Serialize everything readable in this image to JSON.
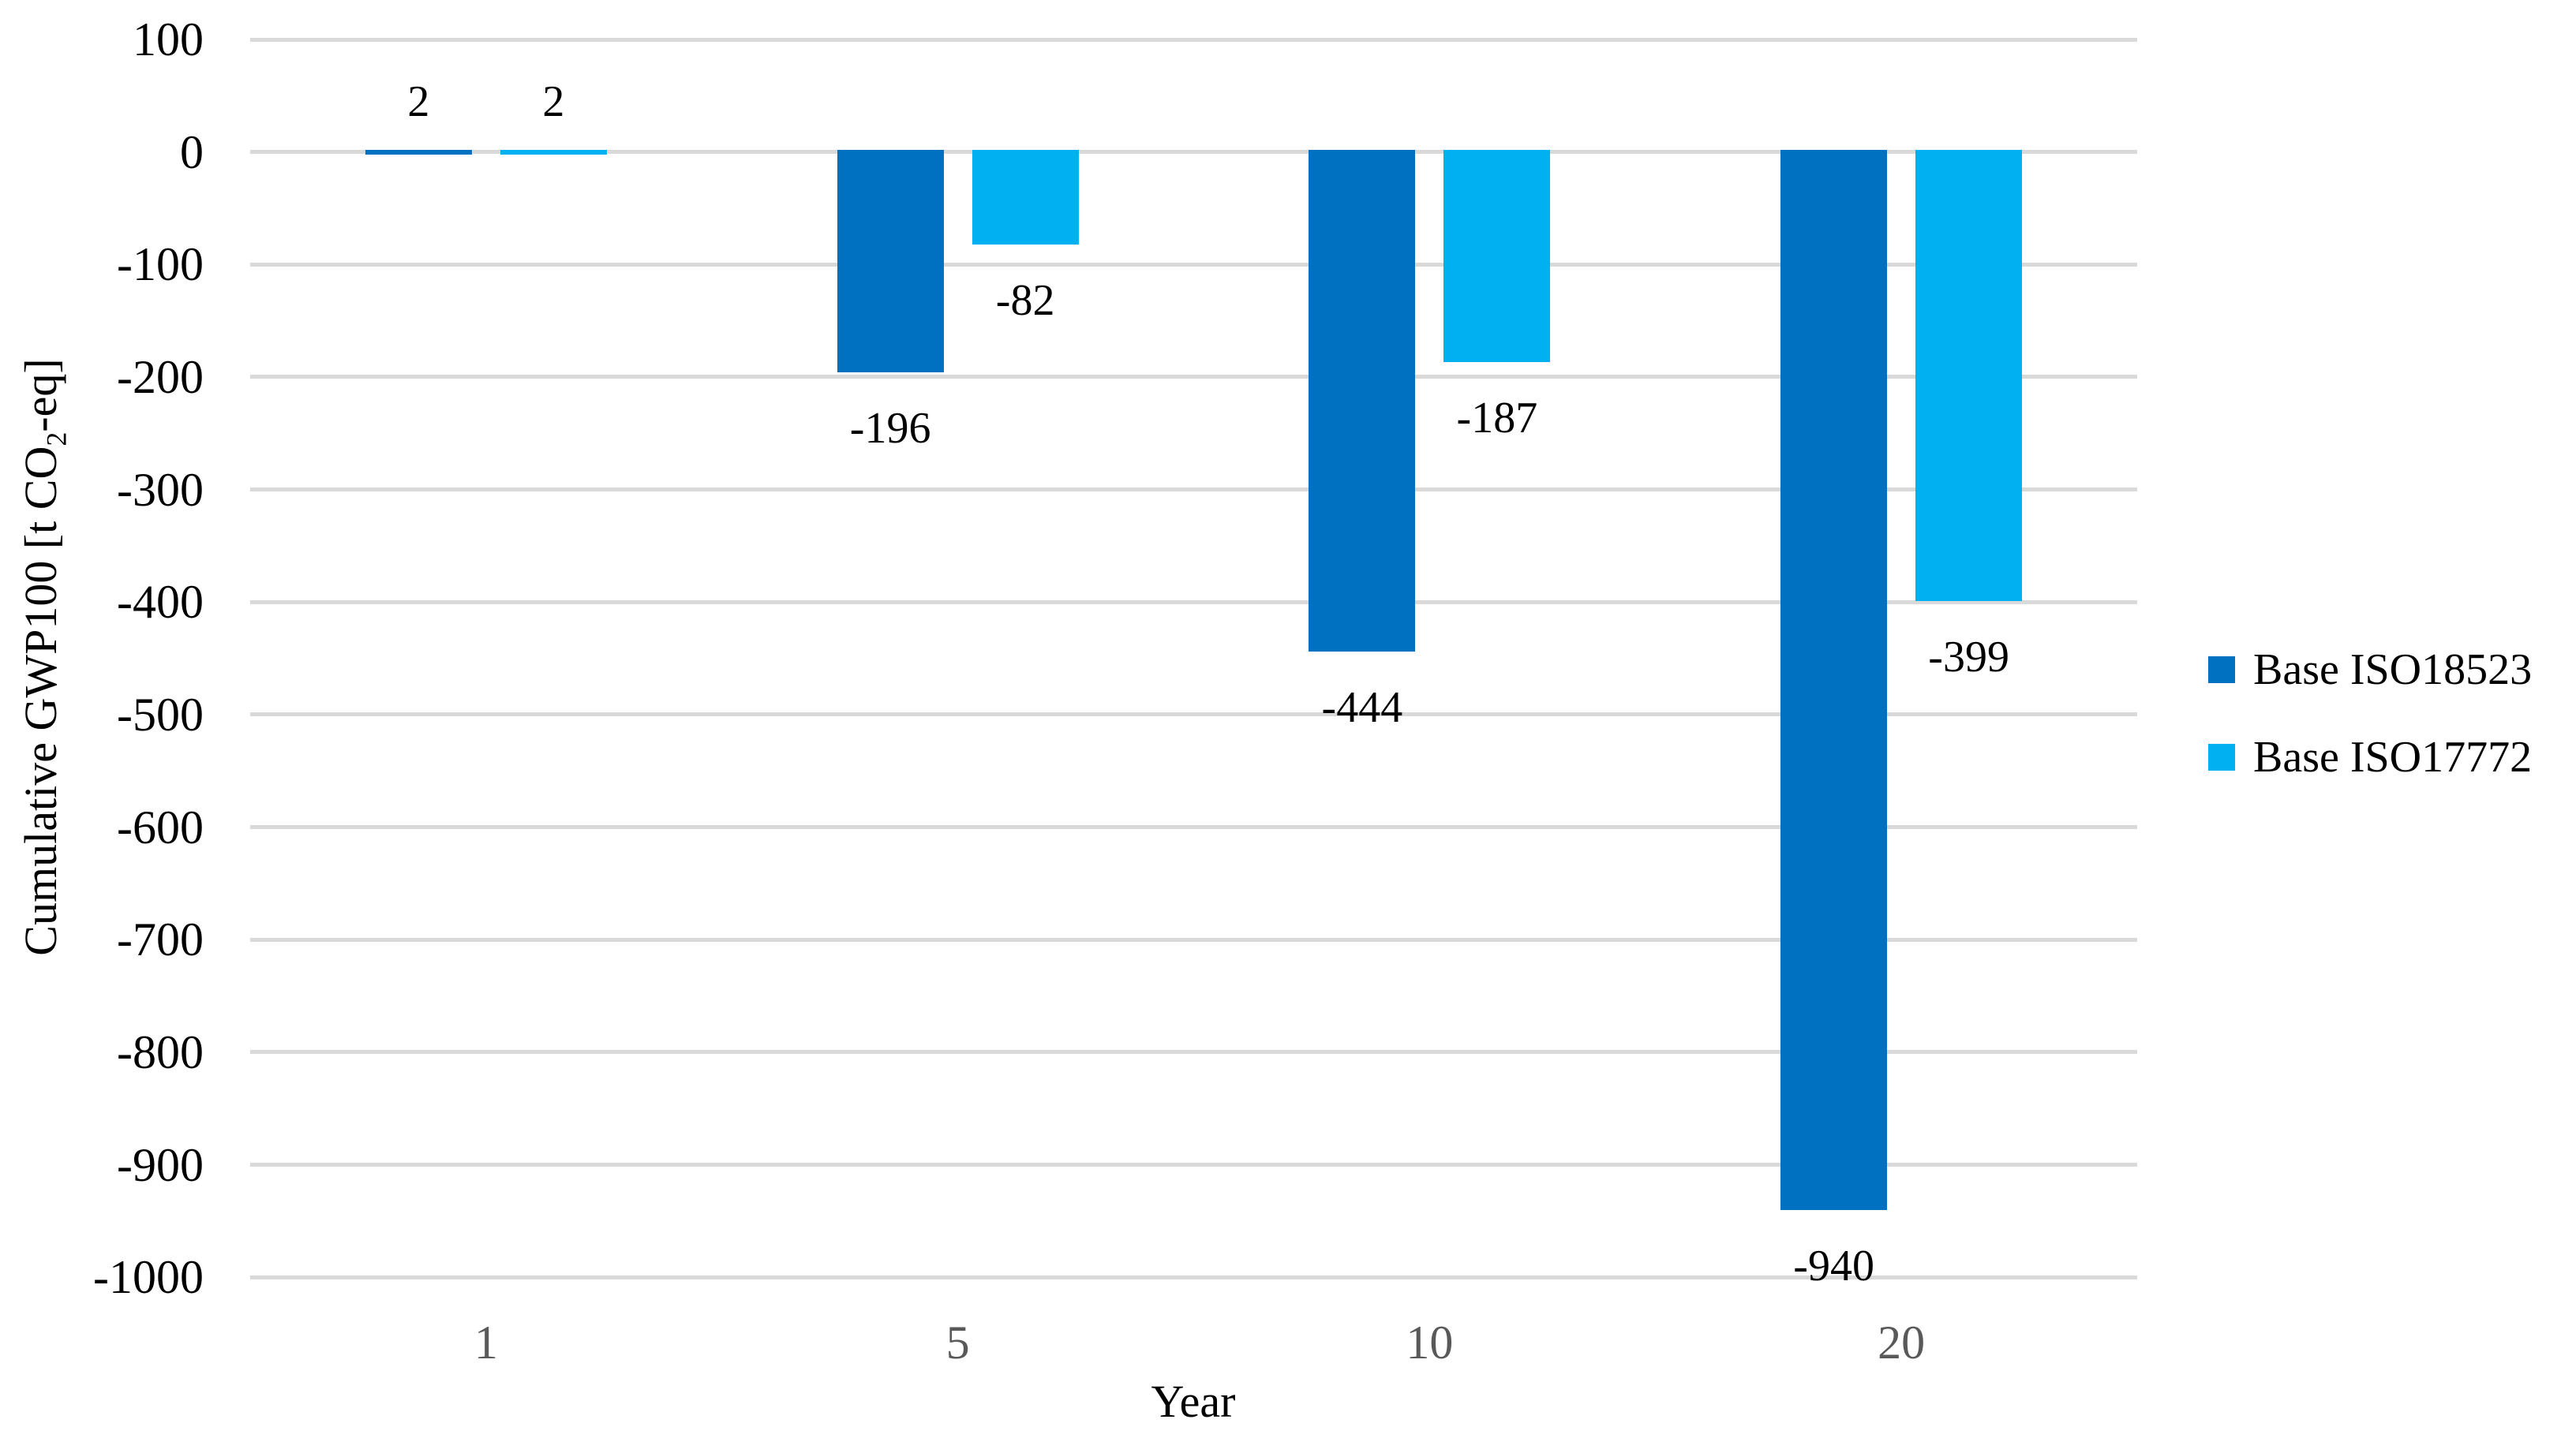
{
  "chart_data": {
    "type": "bar",
    "categories": [
      "1",
      "5",
      "10",
      "20"
    ],
    "series": [
      {
        "name": "Base ISO18523",
        "color": "#0070C0",
        "values": [
          2,
          -196,
          -444,
          -940
        ]
      },
      {
        "name": "Base  ISO17772",
        "color": "#00B0F0",
        "values": [
          2,
          -82,
          -187,
          -399
        ]
      }
    ],
    "data_labels": {
      "series_0": [
        "2",
        "-196",
        "-444",
        "-940"
      ],
      "series_1": [
        "2",
        "-82",
        "-187",
        "-399"
      ]
    },
    "title": "",
    "xlabel": "Year",
    "ylabel": {
      "pre": "Cumulative  GWP100 [t CO",
      "sub": "2",
      "post": "-eq]"
    },
    "ylim": [
      -1000,
      100
    ],
    "ytick_step": 100,
    "ytick_labels": [
      "100",
      "0",
      "-100",
      "-200",
      "-300",
      "-400",
      "-500",
      "-600",
      "-700",
      "-800",
      "-900",
      "-1000"
    ],
    "grid": true,
    "legend_position": "right",
    "colors": {
      "gridline": "#D9D9D9",
      "ytick_text": "#000000",
      "xtick_text": "#595959",
      "axis_title_text": "#000000",
      "data_label_text": "#000000",
      "background": "#FFFFFF"
    }
  }
}
